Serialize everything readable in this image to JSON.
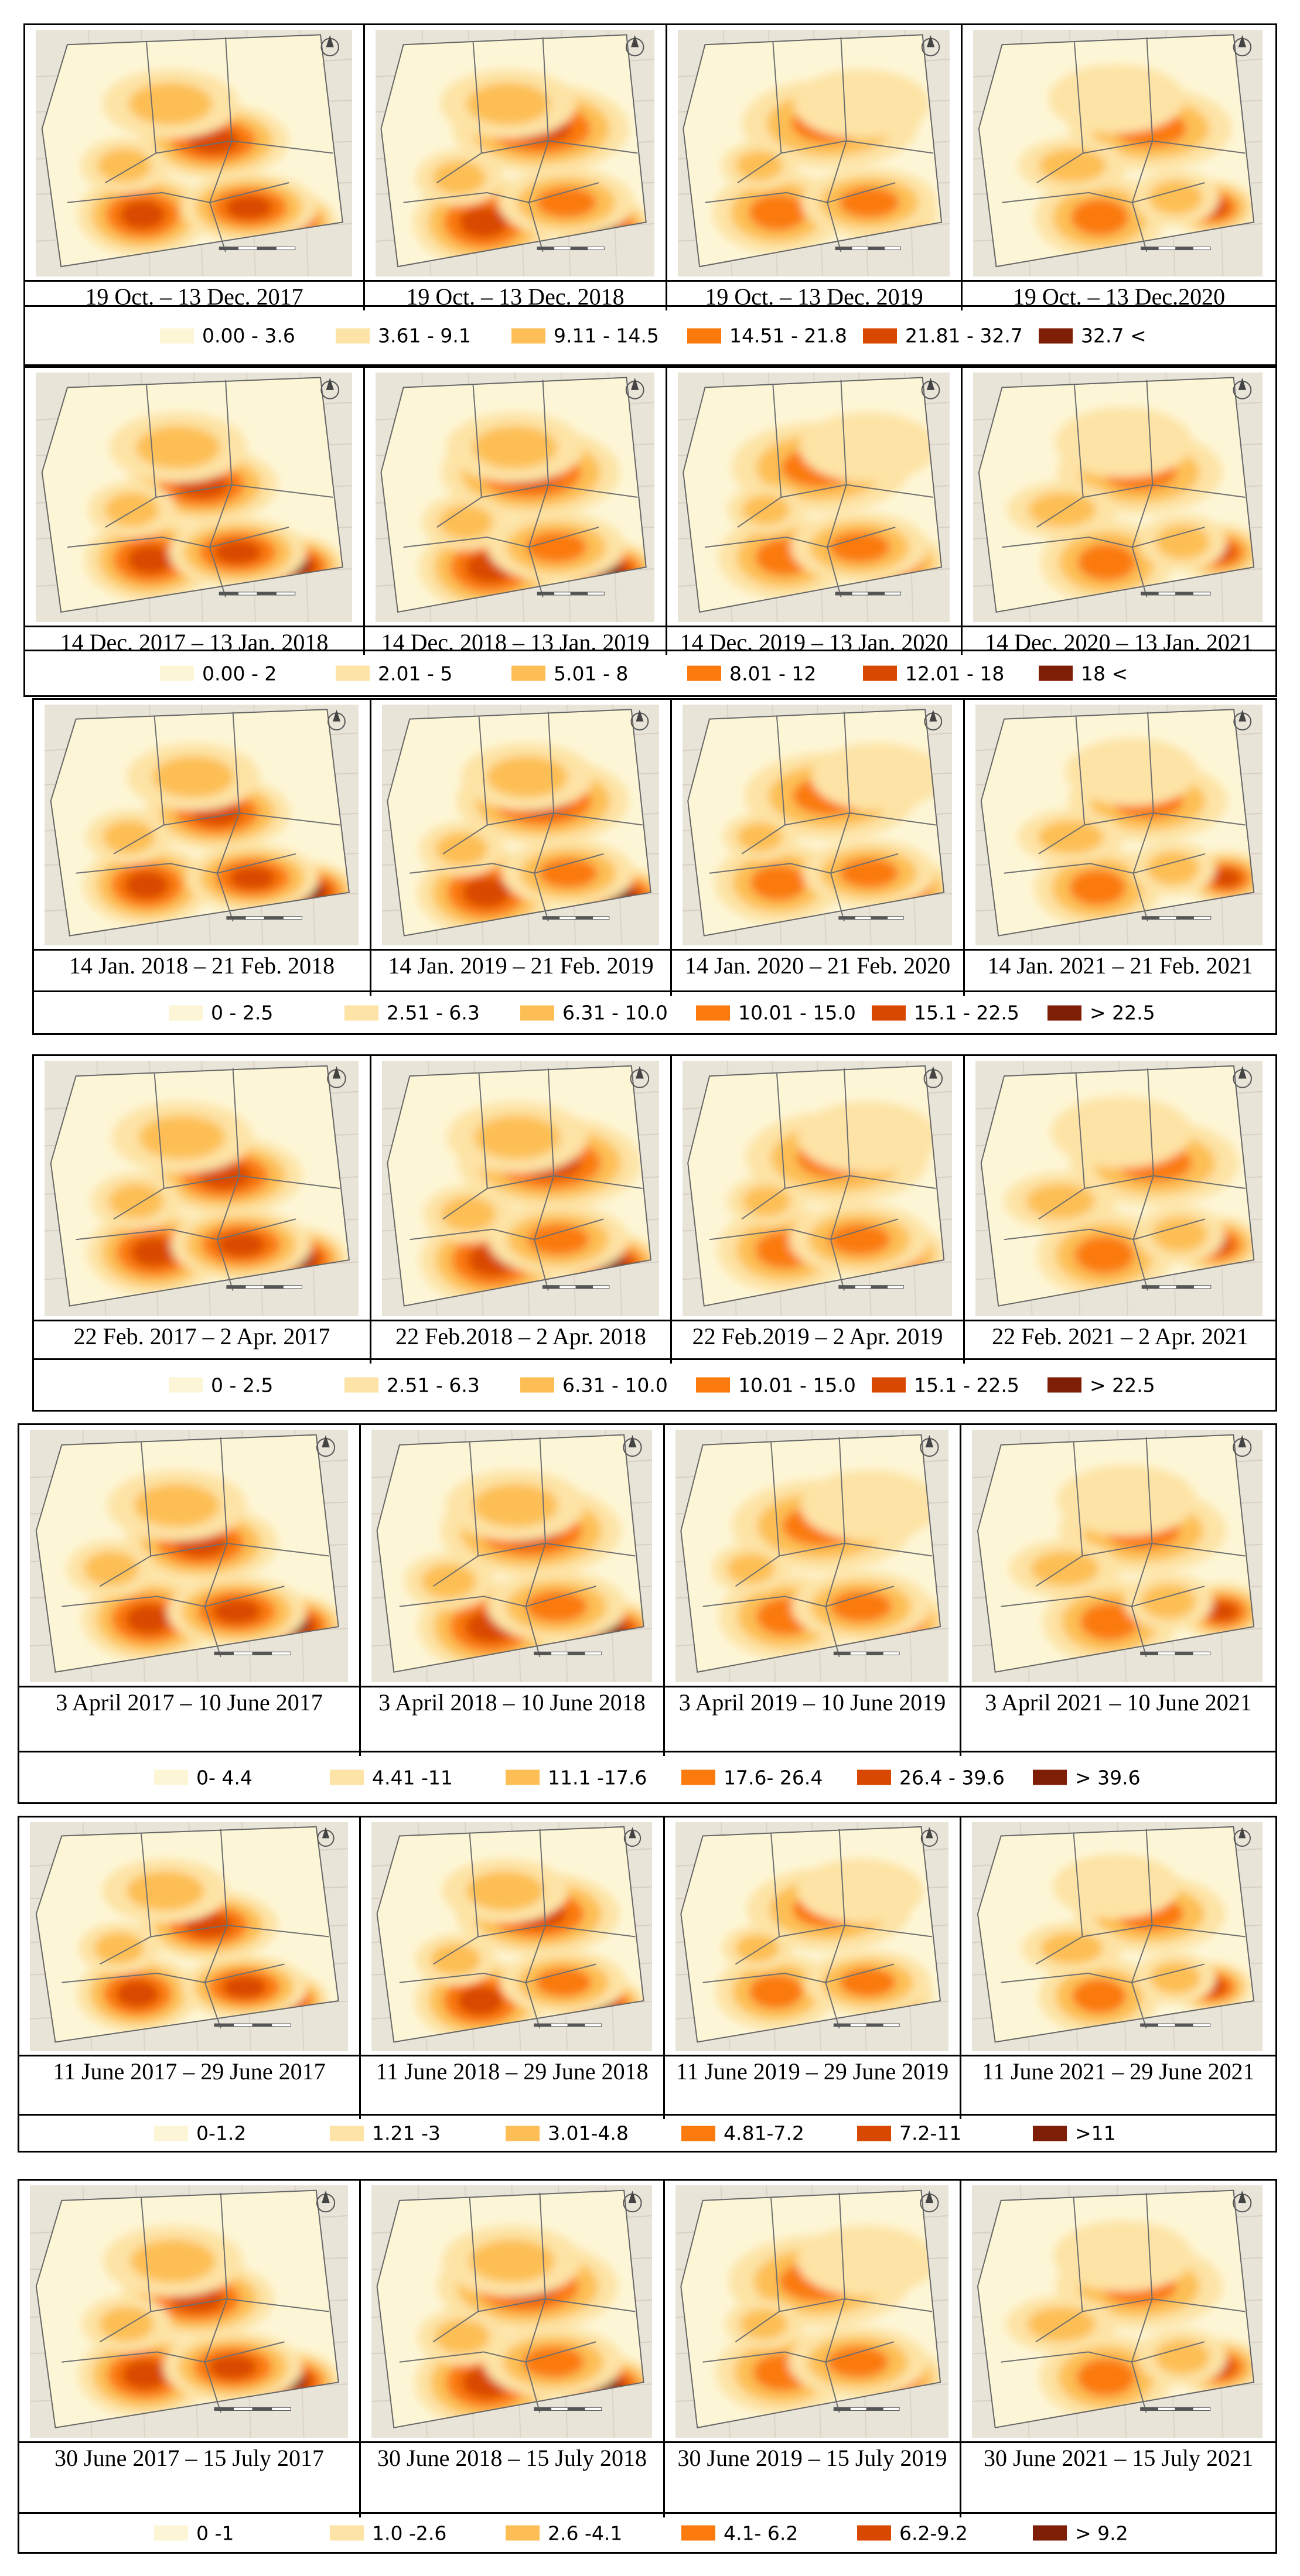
{
  "colors": [
    "#fdf6d6",
    "#fde3a5",
    "#fdbf55",
    "#fb7a0e",
    "#d94800",
    "#7f1e06"
  ],
  "panels": [
    {
      "captions": [
        "19 Oct. – 13 Dec. 2017",
        "19 Oct. – 13 Dec. 2018",
        "19 Oct. – 13 Dec. 2019",
        "19 Oct. – 13 Dec.2020"
      ],
      "legend": [
        "0.00 - 3.6",
        "3.61 - 9.1",
        "9.11 - 14.5",
        "14.51 - 21.8",
        "21.81 - 32.7",
        "32.7 <"
      ]
    },
    {
      "captions": [
        "14 Dec. 2017 – 13 Jan. 2018",
        "14 Dec. 2018 – 13 Jan. 2019",
        "14 Dec. 2019 – 13 Jan. 2020",
        "14 Dec. 2020 – 13 Jan. 2021"
      ],
      "legend": [
        "0.00 - 2",
        "2.01 - 5",
        "5.01 - 8",
        "8.01 - 12",
        "12.01 - 18",
        "18 <"
      ]
    },
    {
      "captions": [
        "14 Jan. 2018 – 21 Feb. 2018",
        "14 Jan. 2019 – 21 Feb. 2019",
        "14 Jan. 2020 – 21 Feb. 2020",
        "14 Jan. 2021 – 21 Feb. 2021"
      ],
      "legend": [
        "0 - 2.5",
        "2.51 - 6.3",
        "6.31 - 10.0",
        "10.01 - 15.0",
        "15.1 - 22.5",
        "> 22.5"
      ]
    },
    {
      "captions": [
        "22 Feb. 2017 – 2 Apr. 2017",
        "22 Feb.2018 – 2 Apr. 2018",
        "22 Feb.2019 – 2 Apr. 2019",
        "22 Feb. 2021 – 2 Apr. 2021"
      ],
      "legend": [
        "0 - 2.5",
        "2.51 - 6.3",
        "6.31 - 10.0",
        "10.01 - 15.0",
        "15.1 - 22.5",
        "> 22.5"
      ]
    },
    {
      "captions": [
        "3 April 2017 – 10 June 2017",
        "3 April 2018 – 10 June 2018",
        "3 April 2019 – 10 June 2019",
        "3 April 2021 – 10 June 2021"
      ],
      "legend": [
        "0- 4.4",
        "4.41 -11",
        "11.1 -17.6",
        "17.6- 26.4",
        "26.4 - 39.6",
        "> 39.6"
      ]
    },
    {
      "captions": [
        "11 June 2017 – 29 June 2017",
        "11 June 2018 – 29 June 2018",
        "11 June 2019 – 29 June 2019",
        "11 June 2021 – 29 June 2021"
      ],
      "legend": [
        "0-1.2",
        "1.21 -3",
        "3.01-4.8",
        "4.81-7.2",
        "7.2-11",
        ">11"
      ]
    },
    {
      "captions": [
        "30 June 2017 – 15 July 2017",
        "30 June 2018 – 15 July 2018",
        "30 June 2019 – 15 July 2019",
        "30 June 2021 – 15 July 2021"
      ],
      "legend": [
        "0 -1",
        "1.0 -2.6",
        "2.6 -4.1",
        "4.1- 6.2",
        "6.2-9.2",
        "> 9.2"
      ]
    }
  ]
}
